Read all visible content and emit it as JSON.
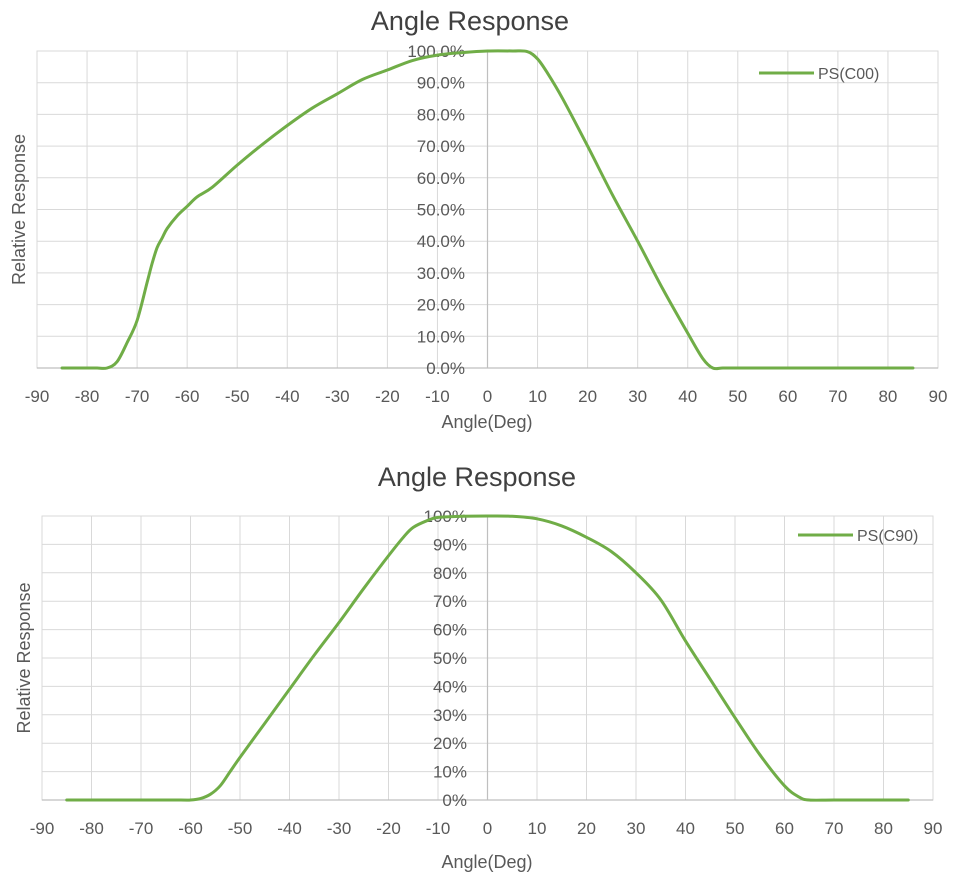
{
  "chart_data": [
    {
      "type": "line",
      "title": "Angle Response",
      "xlabel": "Angle(Deg)",
      "ylabel": "Relative Response",
      "xlim": [
        -90,
        90
      ],
      "ylim": [
        0,
        100
      ],
      "x_ticks": [
        "-90",
        "-80",
        "-70",
        "-60",
        "-50",
        "-40",
        "-30",
        "-20",
        "-10",
        "0",
        "10",
        "20",
        "30",
        "40",
        "50",
        "60",
        "70",
        "80",
        "90"
      ],
      "y_ticks": [
        "0.0%",
        "10.0%",
        "20.0%",
        "30.0%",
        "40.0%",
        "50.0%",
        "60.0%",
        "70.0%",
        "80.0%",
        "90.0%",
        "100.0%"
      ],
      "grid": true,
      "legend": "top-right",
      "series": [
        {
          "name": "PS(C00)",
          "color": "#70ad47",
          "x": [
            -85,
            -80,
            -78,
            -76,
            -74,
            -72,
            -70,
            -68,
            -67,
            -66,
            -65,
            -64,
            -62,
            -60,
            -58,
            -55,
            -50,
            -45,
            -40,
            -35,
            -30,
            -25,
            -20,
            -15,
            -10,
            -5,
            0,
            5,
            8,
            10,
            12,
            15,
            20,
            25,
            30,
            35,
            40,
            43,
            45,
            47,
            50,
            60,
            70,
            80,
            85
          ],
          "y": [
            0,
            0,
            0,
            0,
            2,
            8,
            15,
            27,
            33,
            38,
            41,
            44,
            48,
            51,
            54,
            57,
            64,
            70.5,
            76.5,
            82,
            86.5,
            91,
            94,
            97,
            98.7,
            99.5,
            100,
            100,
            99.8,
            97.5,
            93,
            85,
            70,
            54.5,
            40,
            25,
            11,
            3,
            0,
            0,
            0,
            0,
            0,
            0,
            0
          ]
        }
      ]
    },
    {
      "type": "line",
      "title": "Angle Response",
      "xlabel": "Angle(Deg)",
      "ylabel": "Relative Response",
      "xlim": [
        -90,
        90
      ],
      "ylim": [
        0,
        100
      ],
      "x_ticks": [
        "-90",
        "-80",
        "-70",
        "-60",
        "-50",
        "-40",
        "-30",
        "-20",
        "-10",
        "0",
        "10",
        "20",
        "30",
        "40",
        "50",
        "60",
        "70",
        "80",
        "90"
      ],
      "y_ticks": [
        "0%",
        "10%",
        "20%",
        "30%",
        "40%",
        "50%",
        "60%",
        "70%",
        "80%",
        "90%",
        "100%"
      ],
      "grid": true,
      "legend": "top-right",
      "series": [
        {
          "name": "PS(C90)",
          "color": "#70ad47",
          "x": [
            -85,
            -70,
            -62,
            -60,
            -58,
            -56,
            -54,
            -52,
            -50,
            -45,
            -40,
            -35,
            -30,
            -25,
            -20,
            -17,
            -15,
            -12,
            -10,
            -5,
            0,
            5,
            10,
            15,
            20,
            25,
            30,
            35,
            40,
            45,
            50,
            55,
            60,
            63,
            65,
            70,
            80,
            85
          ],
          "y": [
            0,
            0,
            0,
            0,
            0.5,
            2,
            5,
            10,
            15,
            27,
            39,
            51,
            62.5,
            74.5,
            86,
            92.5,
            96,
            98.5,
            99.5,
            99.9,
            100,
            99.9,
            99,
            96.5,
            92.5,
            87.5,
            80,
            70.5,
            56,
            42.5,
            29,
            16,
            5,
            1,
            0,
            0,
            0,
            0
          ]
        }
      ]
    }
  ]
}
